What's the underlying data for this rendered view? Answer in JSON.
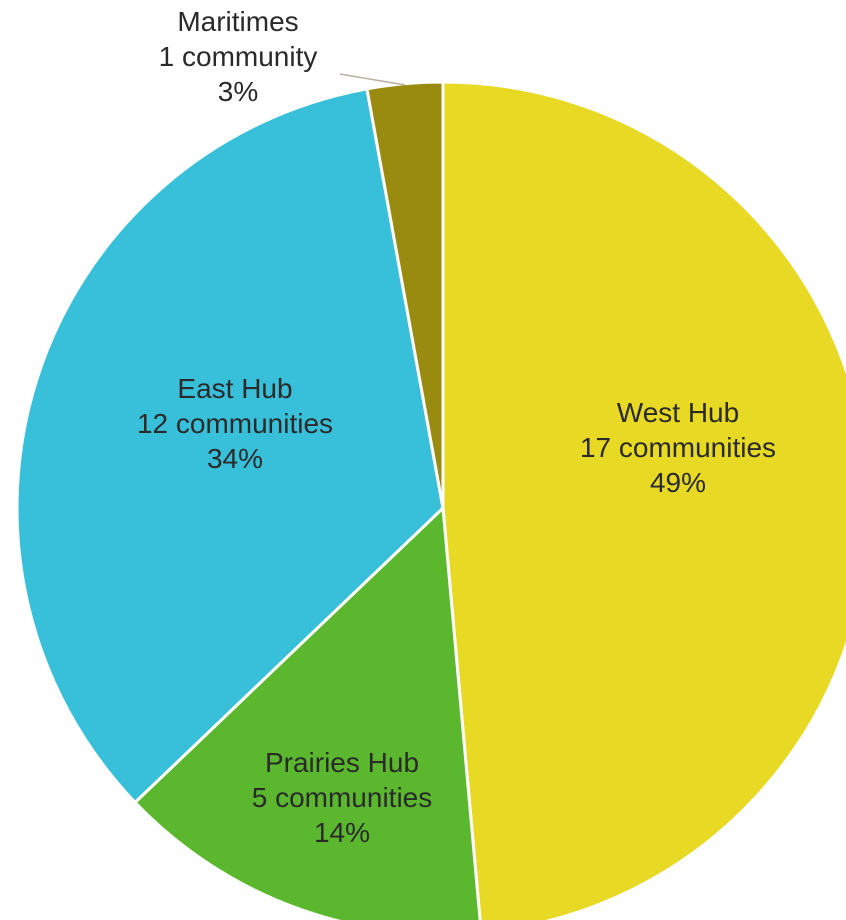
{
  "chart_data": {
    "type": "pie",
    "title": "",
    "slices": [
      {
        "name": "West Hub",
        "count_label": "17 communities",
        "percent_label": "49%",
        "value": 17,
        "color": "#E8DA24"
      },
      {
        "name": "Prairies Hub",
        "count_label": "5 communities",
        "percent_label": "14%",
        "value": 5,
        "color": "#5BB82E"
      },
      {
        "name": "East Hub",
        "count_label": "12 communities",
        "percent_label": "34%",
        "value": 12,
        "color": "#38C0DA"
      },
      {
        "name": "Maritimes",
        "count_label": "1 community",
        "percent_label": "3%",
        "value": 1,
        "color": "#998A10"
      }
    ],
    "start_angle": "12 o'clock",
    "direction": "clockwise",
    "legend": "none",
    "label_placement": "inside slices, except Maritimes outside with leader line"
  }
}
